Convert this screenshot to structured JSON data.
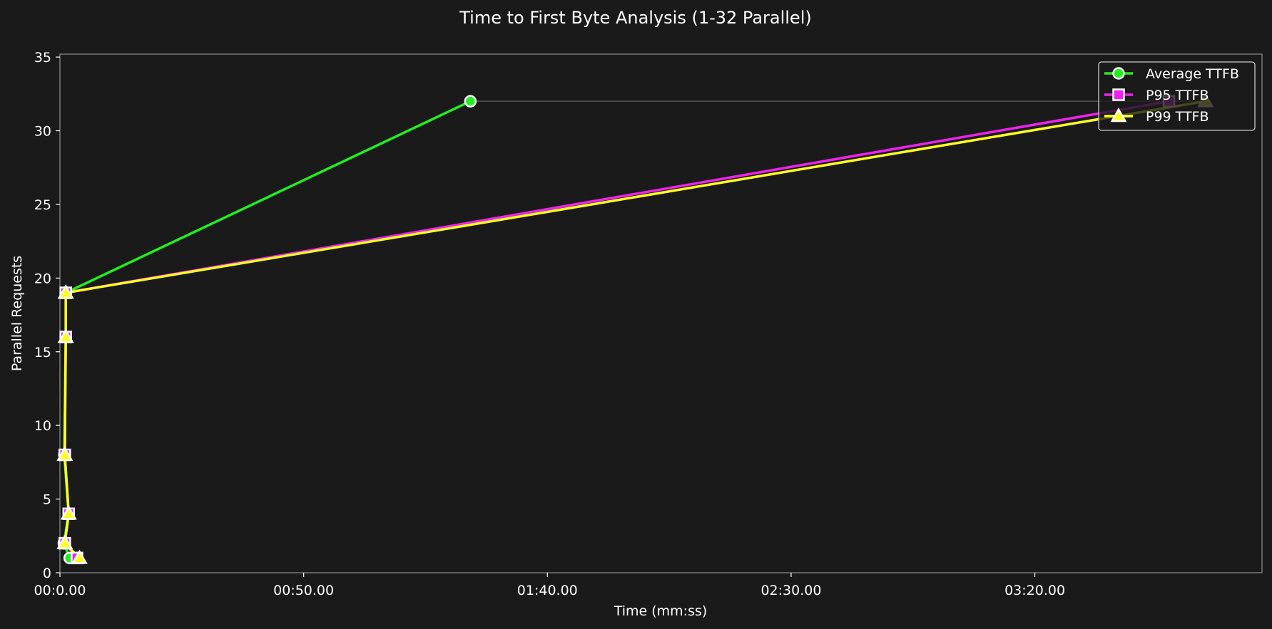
{
  "chart_data": {
    "type": "line",
    "title": "Time to First Byte Analysis (1-32 Parallel)",
    "xlabel": "Time (mm:ss)",
    "ylabel": "Parallel Requests",
    "xlim": [
      0,
      246.6
    ],
    "ylim": [
      0,
      35.2
    ],
    "xticks": [
      0,
      50,
      100,
      150,
      200
    ],
    "xtick_labels": [
      "00:0.00",
      "00:50.00",
      "01:40.00",
      "02:30.00",
      "03:20.00"
    ],
    "yticks": [
      0,
      5,
      10,
      15,
      20,
      25,
      30,
      35
    ],
    "grid": false,
    "legend_position": "top-right",
    "series": [
      {
        "name": "Average TTFB",
        "color": "#22ee22",
        "marker": "circle",
        "points": [
          [
            2.0,
            1
          ],
          [
            0.8,
            2
          ],
          [
            1.8,
            4
          ],
          [
            0.9,
            8
          ],
          [
            1.2,
            16
          ],
          [
            1.2,
            19
          ],
          [
            84.2,
            32
          ]
        ]
      },
      {
        "name": "P95 TTFB",
        "color": "#ee22ee",
        "marker": "square",
        "points": [
          [
            3.5,
            1
          ],
          [
            1.0,
            2
          ],
          [
            1.8,
            4
          ],
          [
            1.0,
            8
          ],
          [
            1.2,
            16
          ],
          [
            1.2,
            19
          ],
          [
            227.5,
            32
          ]
        ]
      },
      {
        "name": "P99 TTFB",
        "color": "#ffff22",
        "marker": "triangle",
        "points": [
          [
            4.0,
            1
          ],
          [
            1.0,
            2
          ],
          [
            1.8,
            4
          ],
          [
            1.0,
            8
          ],
          [
            1.2,
            16
          ],
          [
            1.2,
            19
          ],
          [
            235.0,
            32
          ]
        ]
      }
    ]
  }
}
